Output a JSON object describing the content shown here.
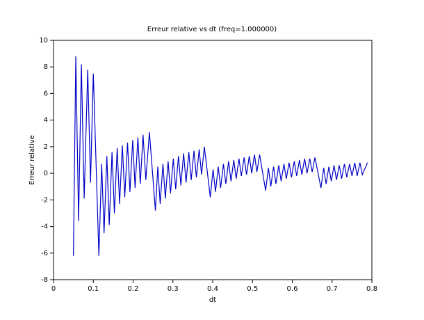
{
  "chart_data": {
    "type": "line",
    "title": "Erreur relative vs dt (freq=1.000000)",
    "x_label": "dt",
    "y_label": "Erreur relative",
    "x": [
      0.05,
      0.056,
      0.063,
      0.07,
      0.077,
      0.086,
      0.093,
      0.1,
      0.114,
      0.121,
      0.127,
      0.134,
      0.14,
      0.147,
      0.153,
      0.16,
      0.166,
      0.173,
      0.179,
      0.186,
      0.192,
      0.199,
      0.205,
      0.212,
      0.218,
      0.225,
      0.232,
      0.241,
      0.256,
      0.262,
      0.268,
      0.275,
      0.281,
      0.288,
      0.294,
      0.301,
      0.307,
      0.314,
      0.32,
      0.327,
      0.333,
      0.34,
      0.346,
      0.353,
      0.359,
      0.366,
      0.372,
      0.379,
      0.394,
      0.401,
      0.407,
      0.414,
      0.42,
      0.427,
      0.433,
      0.44,
      0.446,
      0.453,
      0.459,
      0.466,
      0.472,
      0.479,
      0.485,
      0.492,
      0.498,
      0.505,
      0.511,
      0.518,
      0.533,
      0.54,
      0.546,
      0.553,
      0.559,
      0.566,
      0.572,
      0.579,
      0.585,
      0.592,
      0.598,
      0.605,
      0.611,
      0.618,
      0.624,
      0.631,
      0.637,
      0.644,
      0.65,
      0.657,
      0.672,
      0.679,
      0.685,
      0.692,
      0.698,
      0.705,
      0.711,
      0.718,
      0.724,
      0.731,
      0.737,
      0.744,
      0.75,
      0.757,
      0.763,
      0.77,
      0.776,
      0.789
    ],
    "series": [
      {
        "name": "Erreur relative",
        "color": "#0000c8",
        "values": [
          -6.2,
          8.8,
          -3.6,
          8.2,
          -1.9,
          7.8,
          -0.7,
          7.5,
          -6.2,
          0.7,
          -4.5,
          1.3,
          -3.9,
          1.6,
          -3.0,
          1.9,
          -2.3,
          2.1,
          -1.8,
          2.3,
          -1.4,
          2.5,
          -1.1,
          2.7,
          -0.8,
          2.9,
          -0.5,
          3.1,
          -2.8,
          0.5,
          -2.3,
          0.7,
          -1.9,
          0.9,
          -1.5,
          1.1,
          -1.2,
          1.3,
          -0.9,
          1.5,
          -0.7,
          1.6,
          -0.5,
          1.7,
          -0.3,
          1.8,
          -0.1,
          2.0,
          -1.8,
          0.3,
          -1.4,
          0.5,
          -1.1,
          0.7,
          -0.8,
          0.9,
          -0.6,
          1.0,
          -0.4,
          1.1,
          -0.2,
          1.2,
          -0.1,
          1.3,
          0.0,
          1.4,
          0.1,
          1.4,
          -1.3,
          0.4,
          -1.0,
          0.5,
          -0.8,
          0.6,
          -0.6,
          0.7,
          -0.4,
          0.8,
          -0.3,
          0.9,
          -0.2,
          1.0,
          -0.1,
          1.1,
          0.0,
          1.1,
          0.1,
          1.2,
          -1.1,
          0.4,
          -0.8,
          0.5,
          -0.6,
          0.6,
          -0.5,
          0.6,
          -0.4,
          0.7,
          -0.3,
          0.7,
          -0.2,
          0.8,
          -0.2,
          0.8,
          -0.1,
          0.8
        ]
      }
    ],
    "xlim": [
      0,
      0.8
    ],
    "xticks": [
      0,
      0.1,
      0.2,
      0.3,
      0.4,
      0.5,
      0.6,
      0.7,
      0.8
    ],
    "ylim": [
      -8,
      10
    ],
    "yticks": [
      -8,
      -6,
      -4,
      -2,
      0,
      2,
      4,
      6,
      8,
      10
    ]
  }
}
